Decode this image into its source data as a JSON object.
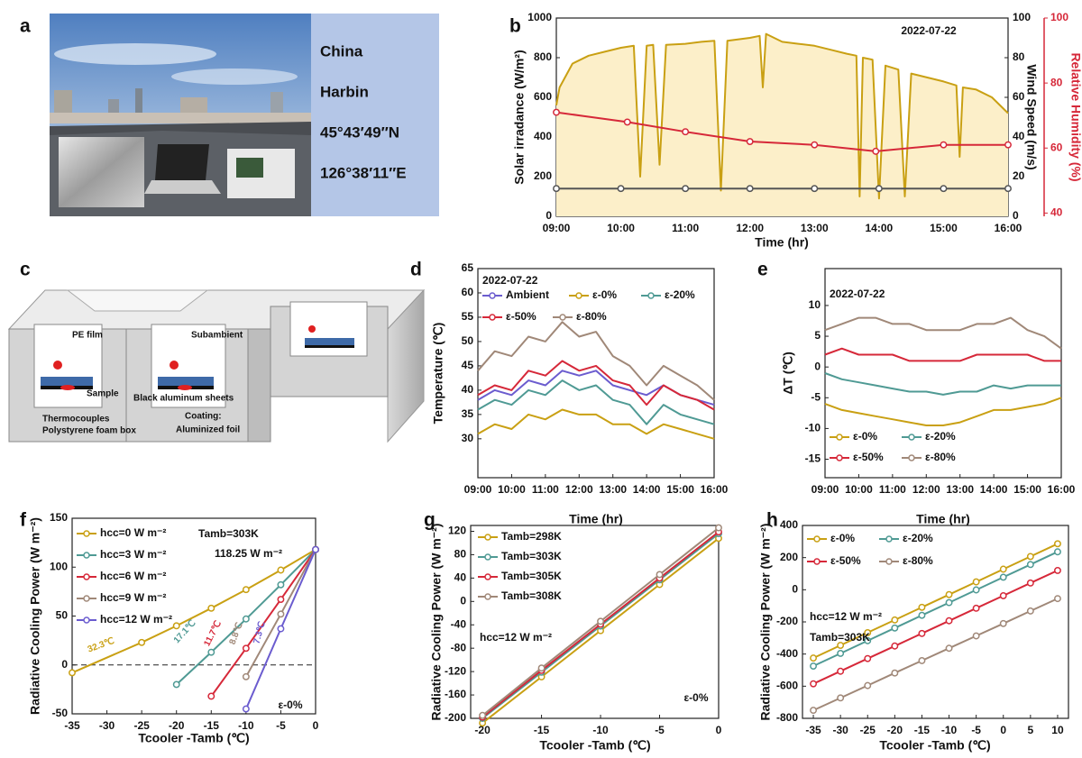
{
  "labels": [
    "a",
    "b",
    "c",
    "d",
    "e",
    "f",
    "g",
    "h"
  ],
  "photo": {
    "texts": [
      "China",
      "Harbin",
      "45°43′49″N",
      "126°38′11″E"
    ]
  },
  "diagram": {
    "texts": [
      "PE film",
      "Subambient",
      "Sample",
      "Thermocouples",
      "Polystyrene foam box",
      "Black aluminum sheets",
      "Coating:",
      "Aluminized foil"
    ]
  },
  "chart_data": [
    {
      "type": "line",
      "x_label": "Time (hr)",
      "y_label": "Solar irradance (W/m²)",
      "y2_label": "Wind Speed (m/s)",
      "y3_label": "Relative Humidity (%)",
      "y3_color": "#d62839",
      "annotations": [
        "2022-07-22"
      ],
      "xlim": [
        9,
        16
      ],
      "xticks": [
        {
          "value": 9,
          "label": "09:00"
        },
        {
          "value": 10,
          "label": "10:00"
        },
        {
          "value": 11,
          "label": "11:00"
        },
        {
          "value": 12,
          "label": "12:00"
        },
        {
          "value": 13,
          "label": "13:00"
        },
        {
          "value": 14,
          "label": "14:00"
        },
        {
          "value": 15,
          "label": "15:00"
        },
        {
          "value": 16,
          "label": "16:00"
        }
      ],
      "ylim": [
        0,
        1000
      ],
      "yticks": [
        0,
        200,
        400,
        600,
        800,
        1000
      ],
      "y2lim": [
        0,
        100
      ],
      "y2ticks": [
        0,
        20,
        40,
        60,
        80,
        100
      ],
      "y3lim": [
        39,
        100
      ],
      "y3ticks": [
        40,
        60,
        80,
        100
      ],
      "series": [
        {
          "color": "#c9a013",
          "fill": "#fcefc9",
          "x": [
            9,
            9.05,
            9.25,
            9.5,
            9.75,
            10,
            10.2,
            10.3,
            10.4,
            10.5,
            10.6,
            10.7,
            11,
            11.25,
            11.45,
            11.55,
            11.65,
            12,
            12.15,
            12.2,
            12.25,
            12.5,
            12.75,
            13,
            13.25,
            13.5,
            13.65,
            13.7,
            13.75,
            13.9,
            14,
            14.1,
            14.3,
            14.4,
            14.5,
            14.75,
            15,
            15.2,
            15.25,
            15.3,
            15.5,
            15.75,
            16
          ],
          "values": [
            560,
            650,
            770,
            810,
            830,
            850,
            860,
            200,
            860,
            865,
            260,
            865,
            870,
            880,
            885,
            130,
            885,
            900,
            910,
            650,
            920,
            880,
            870,
            860,
            840,
            820,
            810,
            100,
            800,
            790,
            90,
            760,
            740,
            100,
            720,
            700,
            680,
            660,
            300,
            650,
            640,
            600,
            520
          ]
        },
        {
          "color": "#555555",
          "axis": "y2",
          "markers": true,
          "x": [
            9,
            10,
            11,
            12,
            13,
            14,
            15,
            16
          ],
          "values": [
            14,
            14,
            14,
            14,
            14,
            14,
            14,
            14
          ]
        },
        {
          "color": "#d62839",
          "axis": "y3",
          "markers": true,
          "x": [
            9,
            10.1,
            11,
            12,
            13,
            13.95,
            15,
            16
          ],
          "values": [
            71,
            68,
            65,
            62,
            61,
            59,
            61,
            61
          ]
        }
      ]
    },
    {
      "type": "line",
      "x_label": "Time (hr)",
      "y_label": "Temperature (℃)",
      "annotations": [
        "2022-07-22"
      ],
      "xlim": [
        9,
        16
      ],
      "xticks": [
        {
          "value": 9,
          "label": "09:00"
        },
        {
          "value": 10,
          "label": "10:00"
        },
        {
          "value": 11,
          "label": "11:00"
        },
        {
          "value": 12,
          "label": "12:00"
        },
        {
          "value": 13,
          "label": "13:00"
        },
        {
          "value": 14,
          "label": "14:00"
        },
        {
          "value": 15,
          "label": "15:00"
        },
        {
          "value": 16,
          "label": "16:00"
        }
      ],
      "ylim": [
        22,
        65
      ],
      "yticks": [
        30,
        35,
        40,
        45,
        50,
        55,
        60,
        65
      ],
      "x": [
        9,
        9.5,
        10,
        10.5,
        11,
        11.5,
        12,
        12.5,
        13,
        13.5,
        14,
        14.5,
        15,
        15.5,
        16
      ],
      "series": [
        {
          "name": "Ambient",
          "color": "#6b5ccf",
          "values": [
            38,
            40,
            39,
            42,
            41,
            44,
            43,
            44,
            41,
            40,
            39,
            41,
            39,
            38,
            37
          ]
        },
        {
          "name": "ε-0%",
          "color": "#c9a013",
          "values": [
            31,
            33,
            32,
            35,
            34,
            36,
            35,
            35,
            33,
            33,
            31,
            33,
            32,
            31,
            30
          ]
        },
        {
          "name": "ε-20%",
          "color": "#4f9a94",
          "values": [
            36,
            38,
            37,
            40,
            39,
            42,
            40,
            41,
            38,
            37,
            33,
            37,
            35,
            34,
            33
          ]
        },
        {
          "name": "ε-50%",
          "color": "#d62839",
          "values": [
            39,
            41,
            40,
            44,
            43,
            46,
            44,
            45,
            42,
            41,
            37,
            41,
            39,
            38,
            36
          ]
        },
        {
          "name": "ε-80%",
          "color": "#a08878",
          "values": [
            44,
            48,
            47,
            51,
            50,
            54,
            51,
            52,
            47,
            45,
            41,
            45,
            43,
            41,
            38
          ]
        }
      ]
    },
    {
      "type": "line",
      "x_label": "Time (hr)",
      "y_label": "ΔT (℃)",
      "annotations": [
        "2022-07-22"
      ],
      "xlim": [
        9,
        16
      ],
      "xticks": [
        {
          "value": 9,
          "label": "09:00"
        },
        {
          "value": 10,
          "label": "10:00"
        },
        {
          "value": 11,
          "label": "11:00"
        },
        {
          "value": 12,
          "label": "12:00"
        },
        {
          "value": 13,
          "label": "13:00"
        },
        {
          "value": 14,
          "label": "14:00"
        },
        {
          "value": 15,
          "label": "15:00"
        },
        {
          "value": 16,
          "label": "16:00"
        }
      ],
      "ylim": [
        -18,
        16
      ],
      "yticks": [
        -15,
        -10,
        -5,
        0,
        5,
        10
      ],
      "x": [
        9,
        9.5,
        10,
        10.5,
        11,
        11.5,
        12,
        12.5,
        13,
        13.5,
        14,
        14.5,
        15,
        15.5,
        16
      ],
      "series": [
        {
          "name": "ε-0%",
          "color": "#c9a013",
          "values": [
            -6,
            -7,
            -7.5,
            -8,
            -8.5,
            -9,
            -9.5,
            -9.5,
            -9,
            -8,
            -7,
            -7,
            -6.5,
            -6,
            -5
          ]
        },
        {
          "name": "ε-20%",
          "color": "#4f9a94",
          "values": [
            -1,
            -2,
            -2.5,
            -3,
            -3.5,
            -4,
            -4,
            -4.5,
            -4,
            -4,
            -3,
            -3.5,
            -3,
            -3,
            -3
          ]
        },
        {
          "name": "ε-50%",
          "color": "#d62839",
          "values": [
            2,
            3,
            2,
            2,
            2,
            1,
            1,
            1,
            1,
            2,
            2,
            2,
            2,
            1,
            1
          ]
        },
        {
          "name": "ε-80%",
          "color": "#a08878",
          "values": [
            6,
            7,
            8,
            8,
            7,
            7,
            6,
            6,
            6,
            7,
            7,
            8,
            6,
            5,
            3
          ]
        }
      ]
    },
    {
      "type": "line",
      "x_label": "Tcooler -Tamb (℃)",
      "y_label": "Radiative Cooling Power (W m⁻²)",
      "zero_line": true,
      "annotations": [
        "Tamb=303K",
        "118.25 W m⁻²",
        "32.3℃",
        "17.1℃",
        "11.7℃",
        "8.8℃",
        "7.3℃",
        "ε-0%"
      ],
      "xlim": [
        -35,
        0
      ],
      "xticks": [
        -35,
        -30,
        -25,
        -20,
        -15,
        -10,
        -5,
        0
      ],
      "ylim": [
        -50,
        150
      ],
      "yticks": [
        -50,
        0,
        50,
        100,
        150
      ],
      "series": [
        {
          "name": "hcc=0  W m⁻²",
          "color": "#c9a013",
          "markers": true,
          "x": [
            -35,
            -25,
            -20,
            -15,
            -10,
            -5,
            0
          ],
          "values": [
            -8,
            23,
            40,
            58,
            77,
            97,
            118
          ]
        },
        {
          "name": "hcc=3  W m⁻²",
          "color": "#4f9a94",
          "markers": true,
          "x": [
            -20,
            -15,
            -10,
            -5,
            0
          ],
          "values": [
            -20,
            13,
            47,
            82,
            118
          ]
        },
        {
          "name": "hcc=6  W m⁻²",
          "color": "#d62839",
          "markers": true,
          "x": [
            -15,
            -10,
            -5,
            0
          ],
          "values": [
            -32,
            17,
            67,
            118
          ]
        },
        {
          "name": "hcc=9  W m⁻²",
          "color": "#a08878",
          "markers": true,
          "x": [
            -10,
            -5,
            0
          ],
          "values": [
            -12,
            52,
            118
          ]
        },
        {
          "name": "hcc=12 W m⁻²",
          "color": "#6b5ccf",
          "markers": true,
          "x": [
            -10,
            -5,
            0
          ],
          "values": [
            -45,
            37,
            118
          ]
        }
      ]
    },
    {
      "type": "line",
      "x_label": "Tcooler -Tamb (℃)",
      "y_label": "Radiative Cooling Power (W m⁻²)",
      "annotations": [
        "hcc=12 W m⁻²",
        "ε-0%"
      ],
      "xlim": [
        -21,
        0
      ],
      "xticks": [
        -20,
        -15,
        -10,
        -5,
        0
      ],
      "ylim": [
        -200,
        130
      ],
      "yticks": [
        -200,
        -160,
        -120,
        -80,
        -40,
        0,
        40,
        80,
        120
      ],
      "x": [
        -20,
        -15,
        -10,
        -5,
        0
      ],
      "series": [
        {
          "name": "Tamb=298K",
          "color": "#c9a013",
          "markers": true,
          "values": [
            -208,
            -129,
            -50,
            29,
            108
          ]
        },
        {
          "name": "Tamb=303K",
          "color": "#4f9a94",
          "markers": true,
          "values": [
            -200,
            -121,
            -42,
            37,
            116
          ]
        },
        {
          "name": "Tamb=305K",
          "color": "#d62839",
          "markers": true,
          "values": [
            -198,
            -118,
            -39,
            40,
            119
          ]
        },
        {
          "name": "Tamb=308K",
          "color": "#a08878",
          "markers": true,
          "values": [
            -195,
            -114,
            -34,
            46,
            126
          ]
        }
      ]
    },
    {
      "type": "line",
      "x_label": "Tcooler -Tamb (℃)",
      "y_label": "Radiative Cooling Power (W m⁻²)",
      "annotations": [
        "hcc=12 W m⁻²",
        "Tamb=303K"
      ],
      "xlim": [
        -37,
        12
      ],
      "xticks": [
        -35,
        -30,
        -25,
        -20,
        -15,
        -10,
        -5,
        0,
        5,
        10
      ],
      "ylim": [
        -800,
        400
      ],
      "yticks": [
        -800,
        -600,
        -400,
        -200,
        0,
        200,
        400
      ],
      "x": [
        -35,
        -30,
        -25,
        -20,
        -15,
        -10,
        -5,
        0,
        5,
        10
      ],
      "series": [
        {
          "name": "ε-0%",
          "color": "#c9a013",
          "markers": true,
          "values": [
            -425,
            -346,
            -267,
            -188,
            -109,
            -30,
            49,
            128,
            207,
            286
          ]
        },
        {
          "name": "ε-20%",
          "color": "#4f9a94",
          "markers": true,
          "values": [
            -475,
            -396,
            -317,
            -238,
            -159,
            -80,
            -1,
            78,
            157,
            236
          ]
        },
        {
          "name": "ε-50%",
          "color": "#d62839",
          "markers": true,
          "values": [
            -585,
            -507,
            -428,
            -350,
            -272,
            -193,
            -115,
            -37,
            42,
            120
          ]
        },
        {
          "name": "ε-80%",
          "color": "#a08878",
          "markers": true,
          "values": [
            -750,
            -673,
            -596,
            -518,
            -441,
            -364,
            -287,
            -210,
            -132,
            -55
          ]
        }
      ]
    }
  ]
}
